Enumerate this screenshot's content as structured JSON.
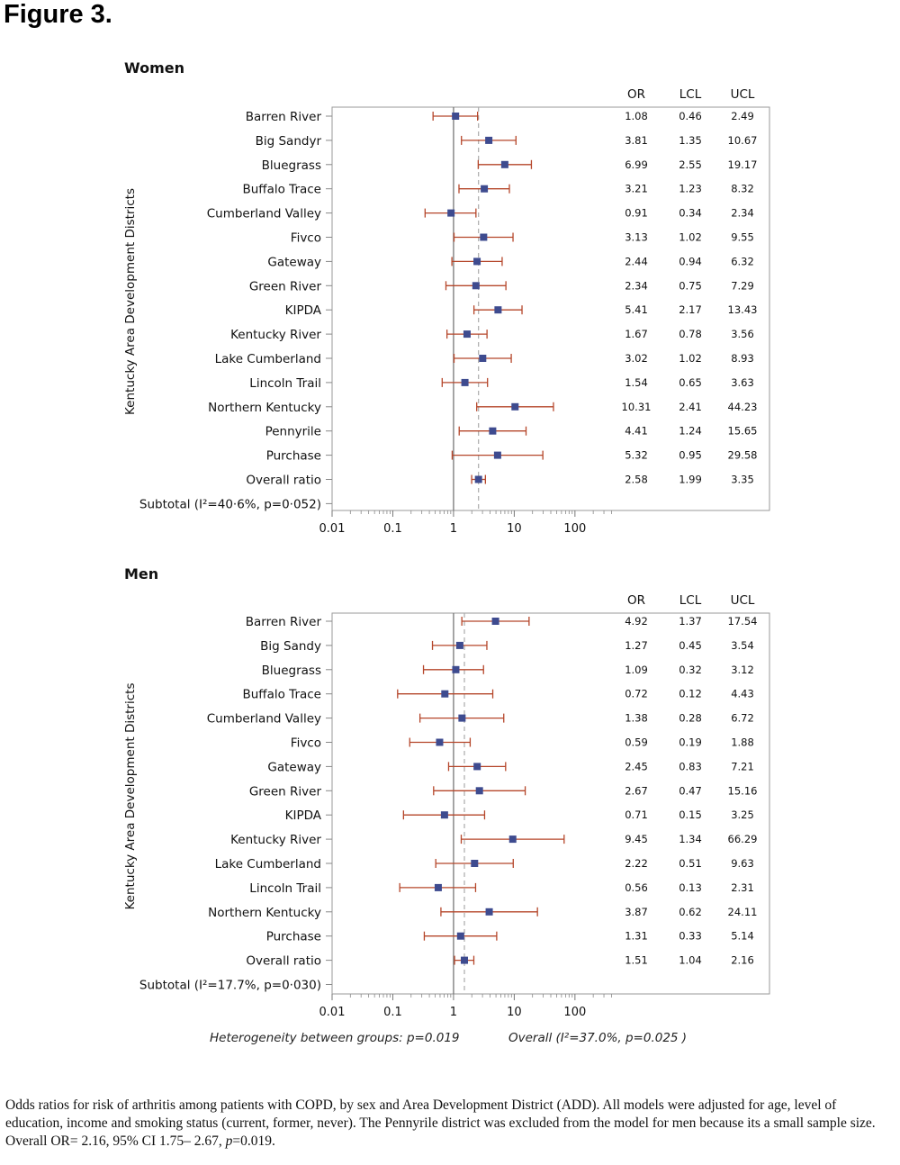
{
  "figure_title": "Figure 3.",
  "caption": {
    "main": "Odds ratios for risk of arthritis among patients with COPD, by sex and Area Development District (ADD). All models were adjusted for age, level of education, income and smoking status (current, former, never). The Pennyrile district was excluded from the model for men because its a small sample size.  Overall OR= 2.16, 95% CI 1.75– 2.67, ",
    "p_label": "p",
    "p_value": "=0.019."
  },
  "table_headers": [
    "OR",
    "LCL",
    "UCL"
  ],
  "footer": {
    "left": "Heterogeneity between groups: p=0.019",
    "right": "Overall (I²=37.0%, p=0.025 )"
  },
  "chart_data": [
    {
      "type": "forest",
      "title": "Women",
      "ylabel": "Kentucky Area Development Districts",
      "x_scale": "log",
      "xlim": [
        0.01,
        500
      ],
      "xticks": [
        "0.01",
        "0.1",
        "1",
        "10",
        "100"
      ],
      "reference_line": 1,
      "overall_line": 2.58,
      "rows": [
        {
          "label": "Barren River",
          "or": "1.08",
          "lcl": "0.46",
          "ucl": "2.49"
        },
        {
          "label": "Big Sandyr",
          "or": "3.81",
          "lcl": "1.35",
          "ucl": "10.67"
        },
        {
          "label": "Bluegrass",
          "or": "6.99",
          "lcl": "2.55",
          "ucl": "19.17"
        },
        {
          "label": "Buffalo Trace",
          "or": "3.21",
          "lcl": "1.23",
          "ucl": "8.32"
        },
        {
          "label": "Cumberland Valley",
          "or": "0.91",
          "lcl": "0.34",
          "ucl": "2.34"
        },
        {
          "label": "Fivco",
          "or": "3.13",
          "lcl": "1.02",
          "ucl": "9.55"
        },
        {
          "label": "Gateway",
          "or": "2.44",
          "lcl": "0.94",
          "ucl": "6.32"
        },
        {
          "label": "Green River",
          "or": "2.34",
          "lcl": "0.75",
          "ucl": "7.29"
        },
        {
          "label": "KIPDA",
          "or": "5.41",
          "lcl": "2.17",
          "ucl": "13.43"
        },
        {
          "label": "Kentucky River",
          "or": "1.67",
          "lcl": "0.78",
          "ucl": "3.56"
        },
        {
          "label": "Lake Cumberland",
          "or": "3.02",
          "lcl": "1.02",
          "ucl": "8.93"
        },
        {
          "label": "Lincoln Trail",
          "or": "1.54",
          "lcl": "0.65",
          "ucl": "3.63"
        },
        {
          "label": "Northern Kentucky",
          "or": "10.31",
          "lcl": "2.41",
          "ucl": "44.23"
        },
        {
          "label": "Pennyrile",
          "or": "4.41",
          "lcl": "1.24",
          "ucl": "15.65"
        },
        {
          "label": "Purchase",
          "or": "5.32",
          "lcl": "0.95",
          "ucl": "29.58"
        },
        {
          "label": "Overall ratio",
          "or": "2.58",
          "lcl": "1.99",
          "ucl": "3.35"
        },
        {
          "label": "Subtotal (I²=40·6%, p=0·052)"
        }
      ],
      "colors": {
        "marker": "#3e4b8f",
        "ci": "#b5462a",
        "axis": "#888888",
        "overall": "#aaaaaa"
      }
    },
    {
      "type": "forest",
      "title": "Men",
      "ylabel": "Kentucky Area Development Districts",
      "x_scale": "log",
      "xlim": [
        0.01,
        500
      ],
      "xticks": [
        "0.01",
        "0.1",
        "1",
        "10",
        "100"
      ],
      "reference_line": 1,
      "overall_line": 1.51,
      "rows": [
        {
          "label": "Barren River",
          "or": "4.92",
          "lcl": "1.37",
          "ucl": "17.54"
        },
        {
          "label": "Big Sandy",
          "or": "1.27",
          "lcl": "0.45",
          "ucl": "3.54"
        },
        {
          "label": "Bluegrass",
          "or": "1.09",
          "lcl": "0.32",
          "ucl": "3.12"
        },
        {
          "label": "Buffalo Trace",
          "or": "0.72",
          "lcl": "0.12",
          "ucl": "4.43"
        },
        {
          "label": "Cumberland Valley",
          "or": "1.38",
          "lcl": "0.28",
          "ucl": "6.72"
        },
        {
          "label": "Fivco",
          "or": "0.59",
          "lcl": "0.19",
          "ucl": "1.88"
        },
        {
          "label": "Gateway",
          "or": "2.45",
          "lcl": "0.83",
          "ucl": "7.21"
        },
        {
          "label": "Green River",
          "or": "2.67",
          "lcl": "0.47",
          "ucl": "15.16"
        },
        {
          "label": "KIPDA",
          "or": "0.71",
          "lcl": "0.15",
          "ucl": "3.25"
        },
        {
          "label": "Kentucky River",
          "or": "9.45",
          "lcl": "1.34",
          "ucl": "66.29"
        },
        {
          "label": "Lake Cumberland",
          "or": "2.22",
          "lcl": "0.51",
          "ucl": "9.63"
        },
        {
          "label": "Lincoln Trail",
          "or": "0.56",
          "lcl": "0.13",
          "ucl": "2.31"
        },
        {
          "label": "Northern Kentucky",
          "or": "3.87",
          "lcl": "0.62",
          "ucl": "24.11"
        },
        {
          "label": "Purchase",
          "or": "1.31",
          "lcl": "0.33",
          "ucl": "5.14"
        },
        {
          "label": "Overall ratio",
          "or": "1.51",
          "lcl": "1.04",
          "ucl": "2.16"
        },
        {
          "label": "Subtotal (I²=17.7%, p=0·030)"
        }
      ],
      "colors": {
        "marker": "#3e4b8f",
        "ci": "#b5462a",
        "axis": "#888888",
        "overall": "#aaaaaa"
      }
    }
  ]
}
